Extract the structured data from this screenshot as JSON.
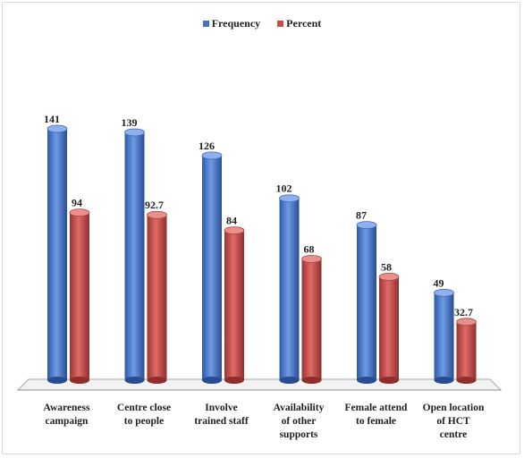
{
  "chart_data": {
    "type": "bar",
    "style": "3d-cylinder",
    "categories": [
      [
        "Awareness",
        "campaign"
      ],
      [
        "Centre close",
        "to people"
      ],
      [
        "Involve",
        "trained staff"
      ],
      [
        "Availability",
        "of other",
        "supports"
      ],
      [
        "Female attend",
        "to female"
      ],
      [
        "Open location",
        "of HCT",
        "centre"
      ]
    ],
    "series": [
      {
        "name": "Frequency",
        "color": "#4472c4",
        "values": [
          141,
          139,
          126,
          102,
          87,
          49
        ],
        "labels": [
          "141",
          "139",
          "126",
          "102",
          "87",
          "49"
        ]
      },
      {
        "name": "Percent",
        "color": "#c0504d",
        "values": [
          94,
          92.7,
          84,
          68,
          58,
          32.7
        ],
        "labels": [
          "94",
          "92.7",
          "84",
          "68",
          "58",
          "32.7"
        ]
      }
    ],
    "ylim": [
      0,
      160
    ],
    "grid": false,
    "legend_position": "top-center"
  }
}
